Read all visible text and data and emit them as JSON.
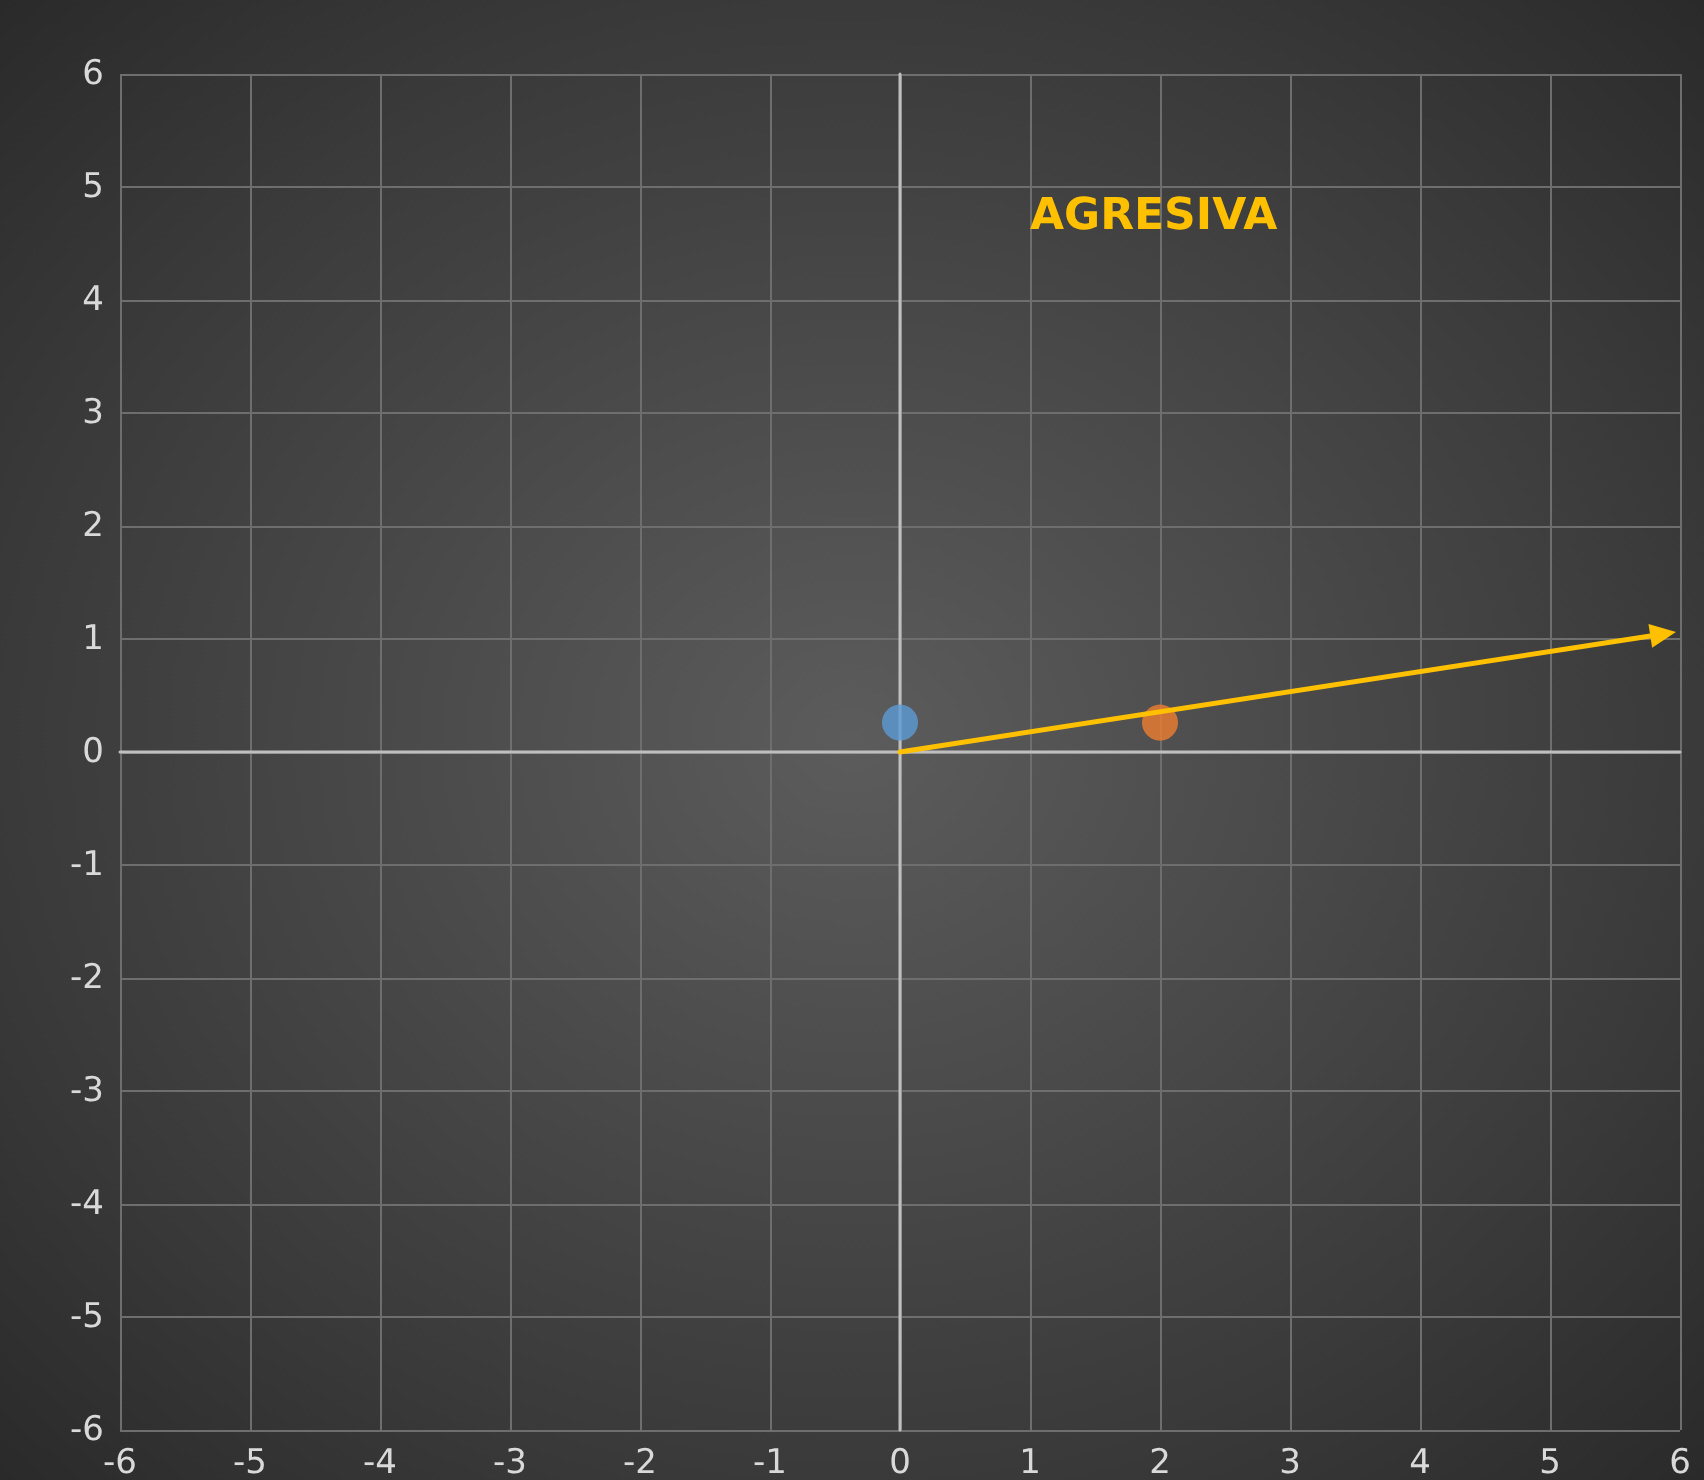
{
  "chart_data": {
    "type": "scatter",
    "title": "AGRESIVA",
    "series": [
      {
        "color": "#5b9bd5",
        "x": [
          0
        ],
        "values": [
          0.26
        ]
      },
      {
        "color": "#ed7d31",
        "x": [
          2
        ],
        "values": [
          0.26
        ]
      }
    ],
    "xlim": [
      -6,
      6
    ],
    "xticks": [
      -6,
      -5,
      -4,
      -3,
      -2,
      -1,
      0,
      1,
      2,
      3,
      4,
      5,
      6
    ],
    "ylim": [
      -6,
      6
    ],
    "yticks": [
      -6,
      -5,
      -4,
      -3,
      -2,
      -1,
      0,
      1,
      2,
      3,
      4,
      5,
      6
    ],
    "grid": true,
    "marker": "circle"
  }
}
